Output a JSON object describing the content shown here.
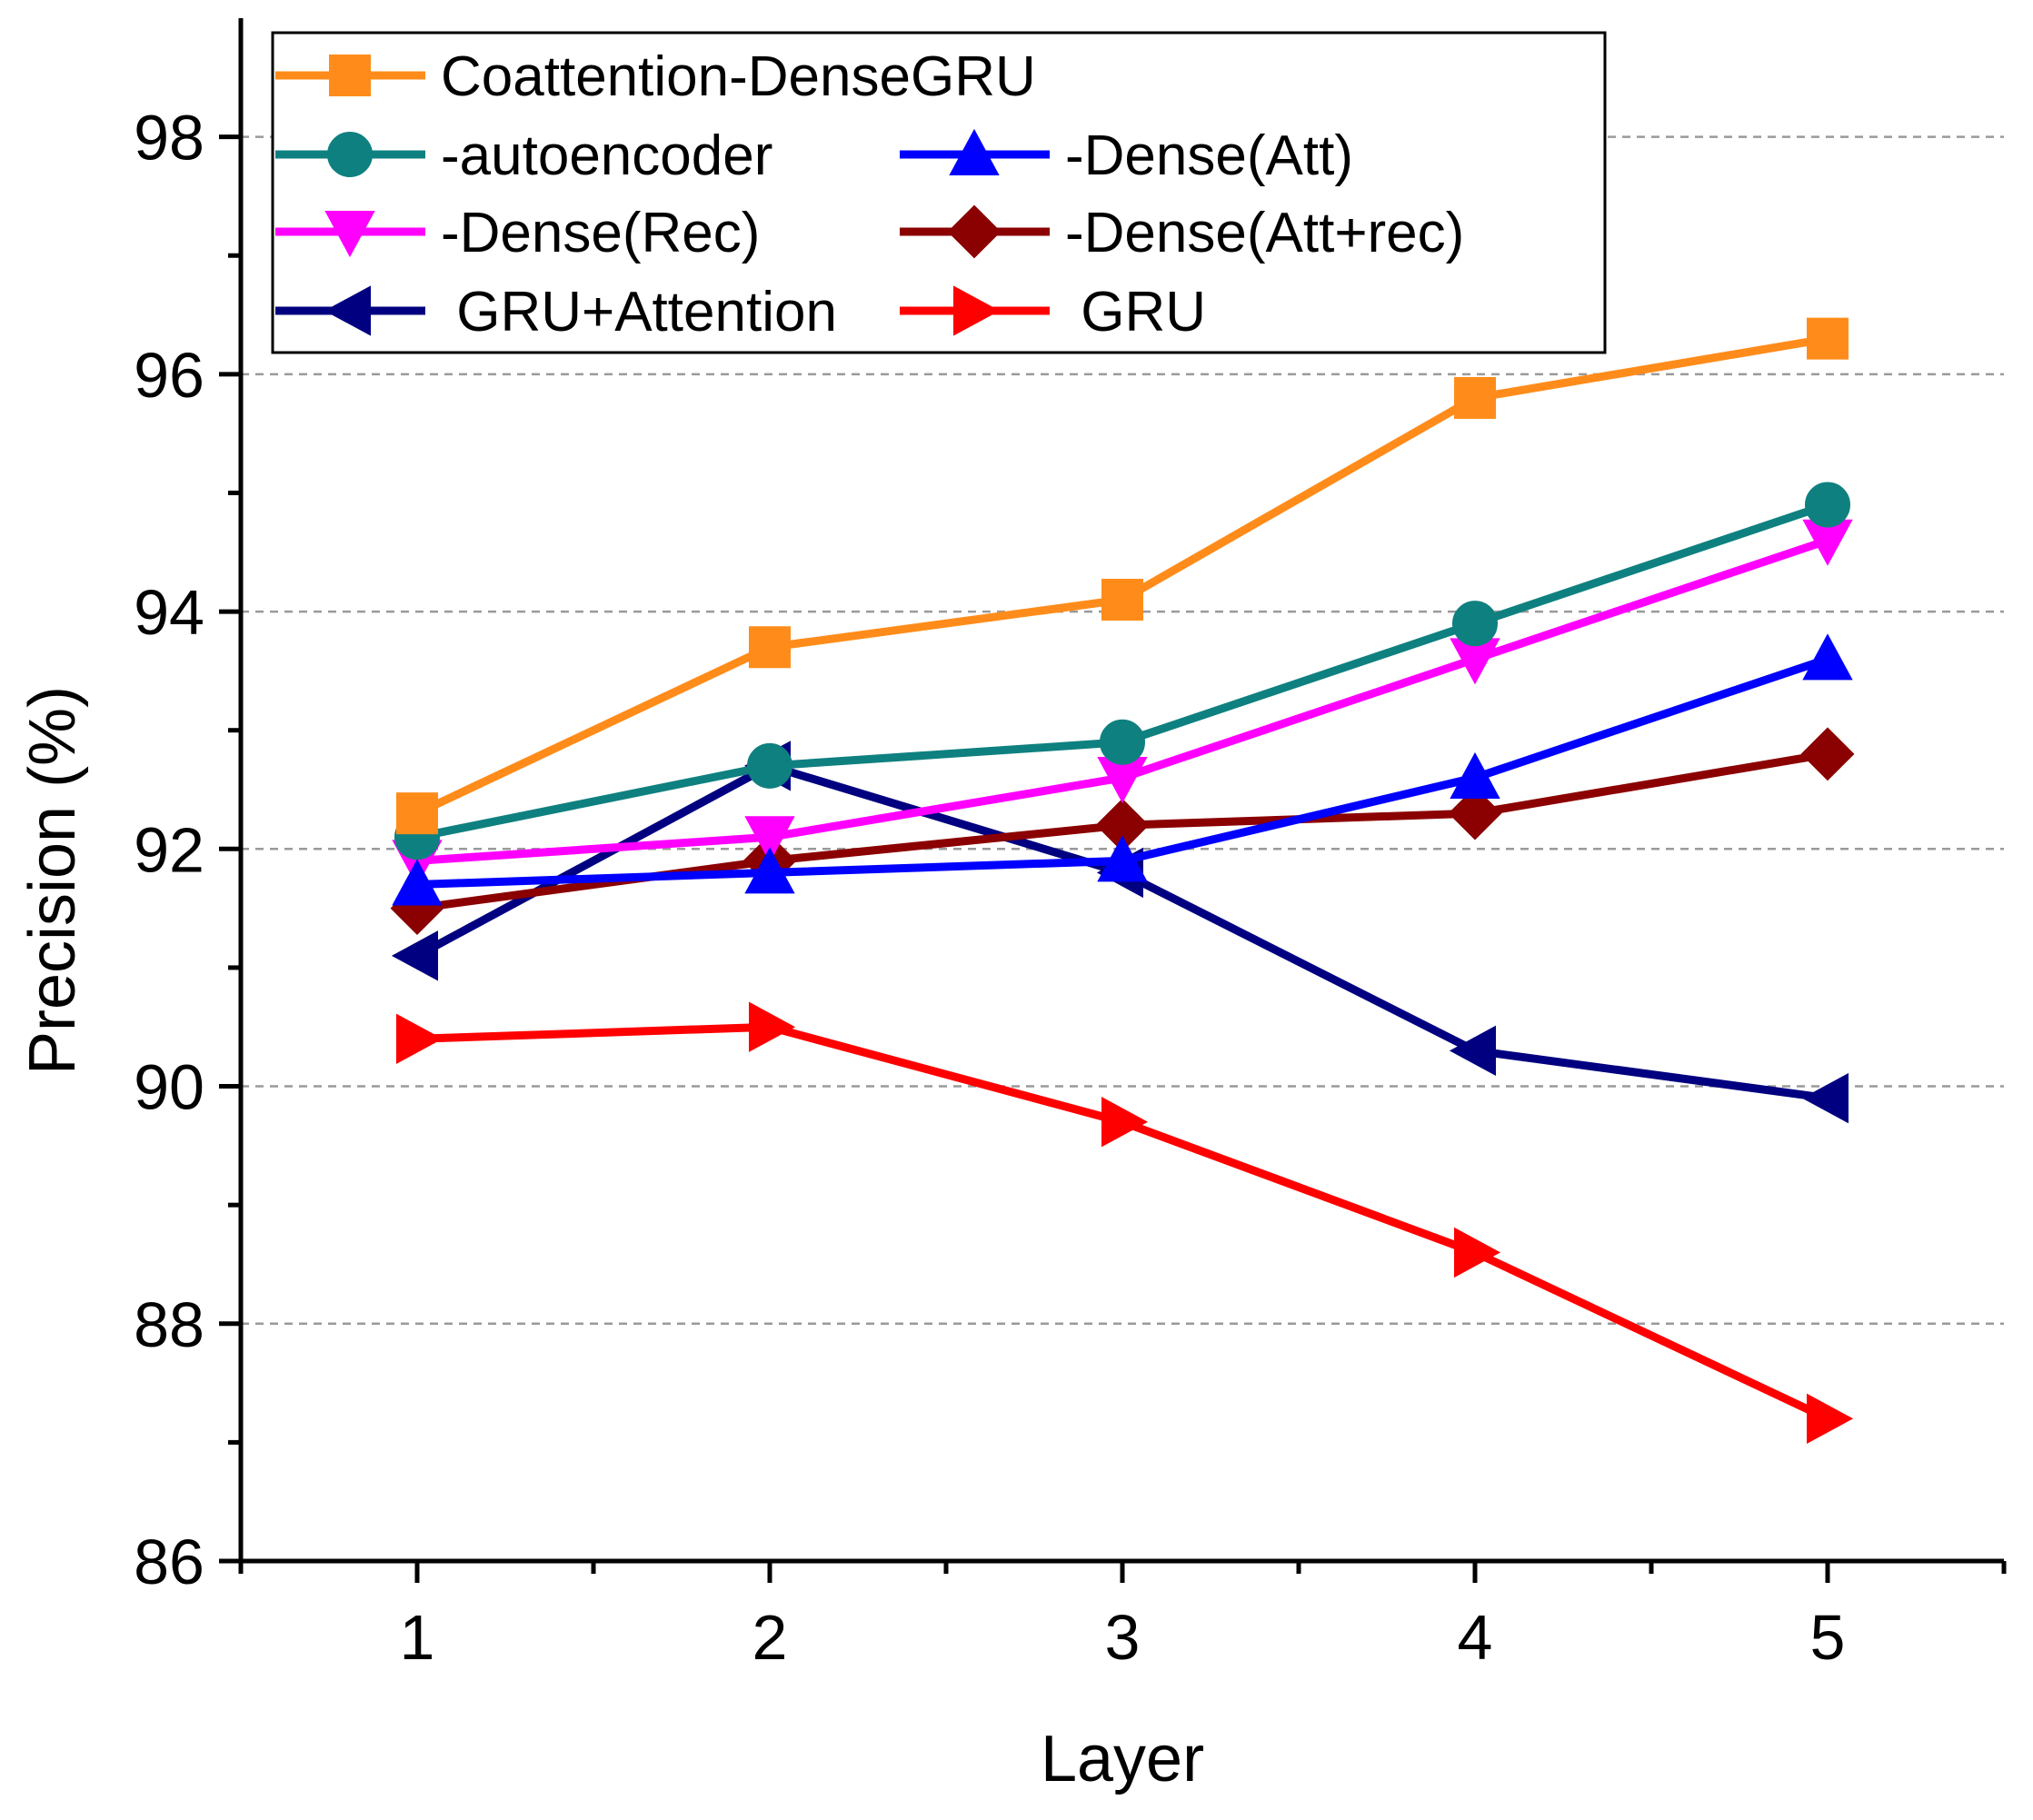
{
  "chart_data": {
    "type": "line",
    "title": "",
    "xlabel": "Layer",
    "ylabel": "Precision (%)",
    "x": [
      1,
      2,
      3,
      4,
      5
    ],
    "x_tick_labels": [
      "1",
      "2",
      "3",
      "4",
      "5"
    ],
    "xlim": [
      0.5,
      5.5
    ],
    "ylim": [
      86,
      99
    ],
    "y_ticks": [
      86,
      88,
      90,
      92,
      94,
      96,
      98
    ],
    "y_tick_labels": [
      "86",
      "88",
      "90",
      "92",
      "94",
      "96",
      "98"
    ],
    "grid": "dashed horizontal at major y ticks",
    "legend_position": "top-left",
    "series": [
      {
        "name": "Coattention-DenseGRU",
        "color": "#FF8C1A",
        "marker": "square",
        "values": [
          92.3,
          93.7,
          94.1,
          95.8,
          96.3
        ]
      },
      {
        "name": "-autoencoder",
        "color": "#0F8080",
        "marker": "circle",
        "values": [
          92.1,
          92.7,
          92.9,
          93.9,
          94.9
        ]
      },
      {
        "name": "-Dense(Att)",
        "color": "#0000FF",
        "marker": "triangle-up",
        "values": [
          91.7,
          91.8,
          91.9,
          92.6,
          93.6
        ]
      },
      {
        "name": "-Dense(Rec)",
        "color": "#FF00FF",
        "marker": "triangle-down",
        "values": [
          91.9,
          92.1,
          92.6,
          93.6,
          94.6
        ]
      },
      {
        "name": "-Dense(Att+rec)",
        "color": "#8B0000",
        "marker": "diamond",
        "values": [
          91.5,
          91.9,
          92.2,
          92.3,
          92.8
        ]
      },
      {
        "name": " GRU+Attention",
        "color": "#000080",
        "marker": "triangle-left",
        "values": [
          91.1,
          92.7,
          91.8,
          90.3,
          89.9
        ]
      },
      {
        "name": " GRU",
        "color": "#FF0000",
        "marker": "triangle-right",
        "values": [
          90.4,
          90.5,
          89.7,
          88.6,
          87.2
        ]
      }
    ]
  }
}
